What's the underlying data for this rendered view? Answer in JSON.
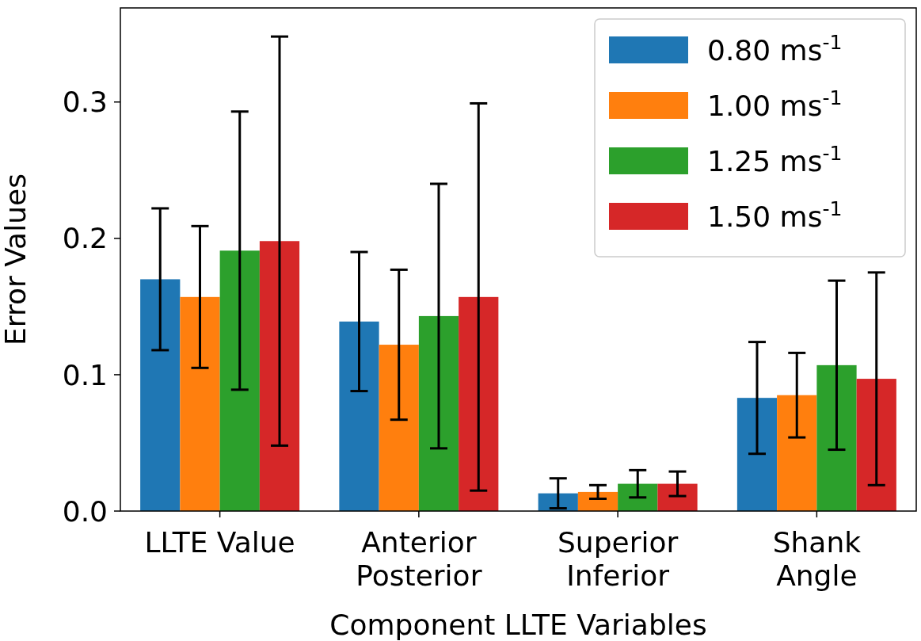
{
  "chart_data": {
    "type": "bar",
    "xlabel": "Component LLTE Variables",
    "ylabel": "Error Values",
    "categories": [
      "LLTE Value",
      "Anterior\nPosterior",
      "Superior\nInferior",
      "Shank\nAngle"
    ],
    "series": [
      {
        "name": "0.80 ms$^{-1}$",
        "color": "#1f77b4",
        "values": [
          0.17,
          0.139,
          0.013,
          0.083
        ],
        "errors": [
          0.052,
          0.051,
          0.011,
          0.041
        ]
      },
      {
        "name": "1.00 ms$^{-1}$",
        "color": "#ff7f0e",
        "values": [
          0.157,
          0.122,
          0.014,
          0.085
        ],
        "errors": [
          0.052,
          0.055,
          0.005,
          0.031
        ]
      },
      {
        "name": "1.25 ms$^{-1}$",
        "color": "#2ca02c",
        "values": [
          0.191,
          0.143,
          0.02,
          0.107
        ],
        "errors": [
          0.102,
          0.097,
          0.01,
          0.062
        ]
      },
      {
        "name": "1.50 ms$^{-1}$",
        "color": "#d62728",
        "values": [
          0.198,
          0.157,
          0.02,
          0.097
        ],
        "errors": [
          0.15,
          0.142,
          0.009,
          0.078
        ]
      }
    ],
    "ylim": [
      0,
      0.369
    ],
    "yticks": [
      {
        "value": 0,
        "label": "0.0"
      },
      {
        "value": 0.1,
        "label": "0.1"
      },
      {
        "value": 0.2,
        "label": "0.2"
      },
      {
        "value": 0.3,
        "label": "0.3"
      }
    ],
    "legend": "top right",
    "grid": false
  }
}
